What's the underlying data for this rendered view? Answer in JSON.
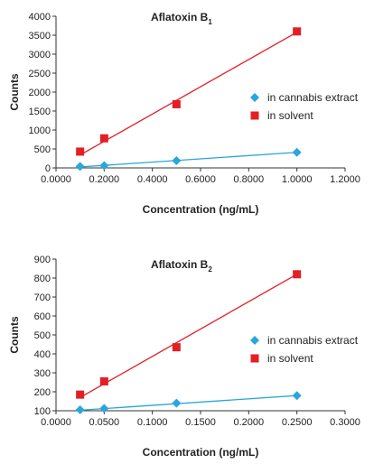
{
  "chart_data": [
    {
      "type": "scatter",
      "title": "Aflatoxin B",
      "title_subscript": "1",
      "xlabel": "Concentration (ng/mL)",
      "ylabel": "Counts",
      "xlim": [
        0,
        1.2
      ],
      "ylim": [
        0,
        4000
      ],
      "xticks": [
        0,
        0.2,
        0.4,
        0.6,
        0.8,
        1.0,
        1.2
      ],
      "xtick_labels": [
        "0.0000",
        "0.2000",
        "0.4000",
        "0.6000",
        "0.8000",
        "1.0000",
        "1.2000"
      ],
      "yticks": [
        0,
        500,
        1000,
        1500,
        2000,
        2500,
        3000,
        3500,
        4000
      ],
      "ytick_labels": [
        "0",
        "500",
        "1000",
        "1500",
        "2000",
        "2500",
        "3000",
        "3500",
        "4000"
      ],
      "grid": false,
      "legend_position": "right",
      "series": [
        {
          "name": "in cannabis extract",
          "color": "#29a6dc",
          "marker": "diamond",
          "x": [
            0.1,
            0.2,
            0.5,
            1.0
          ],
          "y": [
            40,
            60,
            190,
            410
          ],
          "fit": [
            [
              0.1,
              25
            ],
            [
              1.0,
              410
            ]
          ]
        },
        {
          "name": "in solvent",
          "color": "#e31e24",
          "marker": "square",
          "x": [
            0.1,
            0.2,
            0.5,
            1.0
          ],
          "y": [
            430,
            780,
            1680,
            3600
          ],
          "fit": [
            [
              0.1,
              340
            ],
            [
              1.0,
              3580
            ]
          ]
        }
      ]
    },
    {
      "type": "scatter",
      "title": "Aflatoxin B",
      "title_subscript": "2",
      "xlabel": "Concentration (ng/mL)",
      "ylabel": "Counts",
      "xlim": [
        0,
        0.3
      ],
      "ylim": [
        100,
        900
      ],
      "xticks": [
        0,
        0.05,
        0.1,
        0.15,
        0.2,
        0.25,
        0.3
      ],
      "xtick_labels": [
        "0.0000",
        "0.0500",
        "0.1000",
        "0.1500",
        "0.2000",
        "0.2500",
        "0.3000"
      ],
      "yticks": [
        100,
        200,
        300,
        400,
        500,
        600,
        700,
        800,
        900
      ],
      "ytick_labels": [
        "100",
        "200",
        "300",
        "400",
        "500",
        "600",
        "700",
        "800",
        "900"
      ],
      "grid": false,
      "legend_position": "right",
      "series": [
        {
          "name": "in cannabis extract",
          "color": "#29a6dc",
          "marker": "diamond",
          "x": [
            0.025,
            0.05,
            0.125,
            0.25
          ],
          "y": [
            105,
            112,
            140,
            180
          ],
          "fit": [
            [
              0.025,
              103
            ],
            [
              0.25,
              180
            ]
          ]
        },
        {
          "name": "in solvent",
          "color": "#e31e24",
          "marker": "square",
          "x": [
            0.025,
            0.05,
            0.125,
            0.25
          ],
          "y": [
            185,
            255,
            435,
            820
          ],
          "fit": [
            [
              0.025,
              170
            ],
            [
              0.25,
              820
            ]
          ]
        }
      ]
    }
  ]
}
